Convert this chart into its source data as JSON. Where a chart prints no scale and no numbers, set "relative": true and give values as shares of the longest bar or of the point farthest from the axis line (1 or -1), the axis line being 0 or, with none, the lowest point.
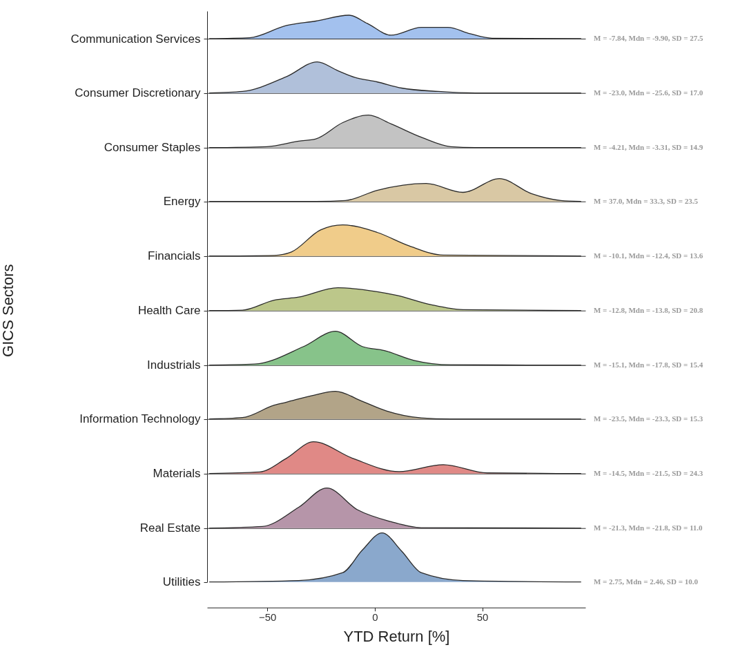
{
  "chart_data": [
    {
      "type": "area",
      "relative": true,
      "ylabel": "Communication Services",
      "xlim": [
        -78,
        98
      ],
      "tick_labels": false,
      "series": [
        {
          "color": "#a3c1ee",
          "x": [
            -77,
            -58.2,
            -41.1,
            -27.4,
            -12,
            -3.5,
            7.6,
            21.6,
            34,
            44.4,
            54.6,
            96
          ],
          "values": [
            0,
            0.04,
            0.56,
            0.75,
            1,
            0.65,
            0.15,
            0.48,
            0.48,
            0.21,
            0.02,
            0
          ]
        }
      ],
      "annotations": [
        "M = -7.84, Mdn = -9.90, SD = 27.5"
      ]
    },
    {
      "type": "area",
      "relative": true,
      "ylabel": "Consumer Discretionary",
      "xlim": [
        -78,
        98
      ],
      "tick_labels": false,
      "series": [
        {
          "color": "#b0c0da",
          "x": [
            -77,
            -61.6,
            -41,
            -26.8,
            -17.2,
            -9.2,
            1,
            12.5,
            29.6,
            46.7,
            96
          ],
          "values": [
            0,
            0.05,
            0.53,
            1,
            0.72,
            0.5,
            0.36,
            0.16,
            0.05,
            0,
            0
          ]
        }
      ],
      "annotations": [
        "M = -23.0, Mdn = -25.6, SD = 17.0"
      ]
    },
    {
      "type": "area",
      "relative": true,
      "ylabel": "Consumer Staples",
      "xlim": [
        -78,
        98
      ],
      "tick_labels": false,
      "series": [
        {
          "color": "#c3c3c3",
          "x": [
            -77,
            -50.2,
            -35.4,
            -27.4,
            -14.9,
            -2.9,
            7.6,
            21.6,
            35.3,
            46.7,
            96
          ],
          "values": [
            0,
            0.03,
            0.2,
            0.27,
            0.77,
            1,
            0.73,
            0.32,
            0.03,
            0,
            0
          ]
        }
      ],
      "annotations": [
        "M = -4.21, Mdn = -3.31, SD = 14.9"
      ]
    },
    {
      "type": "area",
      "relative": true,
      "ylabel": "Energy",
      "xlim": [
        -78,
        98
      ],
      "tick_labels": false,
      "series": [
        {
          "color": "#d9c8a4",
          "x": [
            -77,
            -27.4,
            -13.7,
            1.1,
            23.9,
            41,
            58,
            72.9,
            86.6,
            96
          ],
          "values": [
            0,
            0,
            0.04,
            0.49,
            0.79,
            0.4,
            1,
            0.34,
            0.04,
            0
          ]
        }
      ],
      "annotations": [
        "M = 37.0, Mdn = 33.3, SD = 23.5"
      ]
    },
    {
      "type": "area",
      "relative": true,
      "ylabel": "Financials",
      "xlim": [
        -78,
        98
      ],
      "tick_labels": false,
      "series": [
        {
          "color": "#f0cc8a",
          "x": [
            -77,
            -46.8,
            -38.8,
            -25.2,
            -14.9,
            1.1,
            15.9,
            31.9,
            96
          ],
          "values": [
            0,
            0.02,
            0.13,
            0.84,
            1,
            0.76,
            0.33,
            0.03,
            0
          ]
        }
      ],
      "annotations": [
        "M = -10.1, Mdn = -12.4, SD = 13.6"
      ]
    },
    {
      "type": "area",
      "relative": true,
      "ylabel": "Health Care",
      "xlim": [
        -78,
        98
      ],
      "tick_labels": false,
      "series": [
        {
          "color": "#bcc78a",
          "x": [
            -77,
            -61.6,
            -46.8,
            -35.4,
            -17.2,
            1.1,
            10.2,
            26.1,
            41,
            96
          ],
          "values": [
            0,
            0.02,
            0.46,
            0.59,
            1,
            0.83,
            0.67,
            0.26,
            0.04,
            0
          ]
        }
      ],
      "annotations": [
        "GICS Sectors",
        "M = -12.8, Mdn = -13.8, SD = 20.8"
      ]
    },
    {
      "type": "area",
      "relative": true,
      "ylabel": "Industrials",
      "xlim": [
        -78,
        98
      ],
      "tick_labels": false,
      "series": [
        {
          "color": "#87c38a",
          "x": [
            -77,
            -55.9,
            -33.1,
            -18.3,
            -5.8,
            4.5,
            18.2,
            35.3,
            96
          ],
          "values": [
            0,
            0.03,
            0.55,
            1,
            0.55,
            0.43,
            0.14,
            0.01,
            0
          ]
        }
      ],
      "annotations": [
        "M = -15.1, Mdn = -17.8, SD = 15.4"
      ]
    },
    {
      "type": "area",
      "relative": true,
      "ylabel": "Information Technology",
      "xlim": [
        -78,
        98
      ],
      "tick_labels": false,
      "series": [
        {
          "color": "#b2a488",
          "x": [
            -77,
            -61.6,
            -46.8,
            -41.1,
            -29.6,
            -18.3,
            -5.8,
            5.5,
            21.6,
            35.3,
            96
          ],
          "values": [
            0,
            0.05,
            0.5,
            0.61,
            0.84,
            1,
            0.64,
            0.29,
            0.04,
            0,
            0
          ]
        }
      ],
      "annotations": [
        "M = -23.5, Mdn = -23.3, SD = 15.3"
      ]
    },
    {
      "type": "area",
      "relative": true,
      "ylabel": "Materials",
      "xlim": [
        -78,
        98
      ],
      "tick_labels": false,
      "series": [
        {
          "color": "#e08986",
          "x": [
            -77,
            -53.6,
            -41.1,
            -28.5,
            -10.3,
            11.3,
            31.9,
            52.4,
            96
          ],
          "values": [
            0,
            0.05,
            0.48,
            1,
            0.48,
            0.06,
            0.28,
            0.02,
            0
          ]
        }
      ],
      "annotations": [
        "M = -14.5, Mdn = -21.5, SD = 24.3"
      ]
    },
    {
      "type": "area",
      "relative": true,
      "ylabel": "Real Estate",
      "xlim": [
        -78,
        98
      ],
      "tick_labels": false,
      "series": [
        {
          "color": "#b695a9",
          "x": [
            -77,
            -52.4,
            -35.4,
            -22.3,
            -8.1,
            7.6,
            21.6,
            96
          ],
          "values": [
            0,
            0.04,
            0.52,
            1,
            0.46,
            0.16,
            0.01,
            0
          ]
        }
      ],
      "annotations": [
        "M = -21.3, Mdn = -21.8, SD = 11.0"
      ]
    },
    {
      "type": "area",
      "relative": true,
      "ylabel": "Utilities",
      "xlabel": "YTD Return [%]",
      "xlim": [
        -78,
        98
      ],
      "xticks": [
        -50,
        0,
        50
      ],
      "tick_labels": "x",
      "series": [
        {
          "color": "#8aa8cc",
          "x": [
            -77,
            -35.4,
            -14.9,
            -5.8,
            3.4,
            12.5,
            21.6,
            41,
            96
          ],
          "values": [
            0,
            0.03,
            0.19,
            0.65,
            1,
            0.63,
            0.19,
            0.03,
            0
          ]
        }
      ],
      "annotations": [
        "M = 2.75, Mdn = 2.46, SD = 10.0"
      ]
    }
  ]
}
